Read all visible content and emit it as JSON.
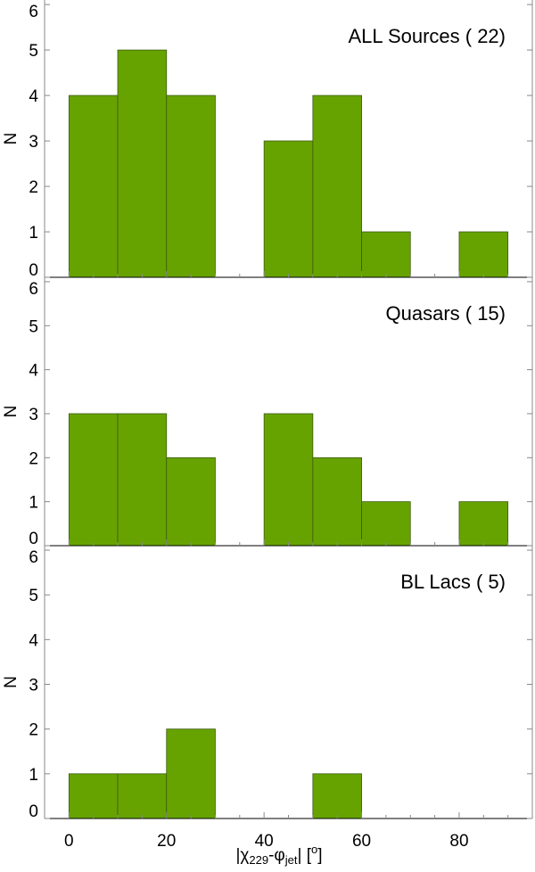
{
  "chart_data": [
    {
      "type": "bar",
      "title": "ALL Sources ( 22)",
      "ylabel": "N",
      "xlabel": "",
      "bin_edges": [
        0,
        10,
        20,
        30,
        40,
        50,
        60,
        70,
        80,
        90
      ],
      "values": [
        4,
        5,
        4,
        0,
        3,
        4,
        1,
        0,
        1
      ],
      "xlim": [
        -5,
        95
      ],
      "ylim": [
        0,
        6.1
      ],
      "yticks": [
        0,
        1,
        2,
        3,
        4,
        5,
        6
      ],
      "xticks": [
        0,
        20,
        40,
        60,
        80
      ],
      "show_xtick_labels": false
    },
    {
      "type": "bar",
      "title": "Quasars ( 15)",
      "ylabel": "N",
      "xlabel": "",
      "bin_edges": [
        0,
        10,
        20,
        30,
        40,
        50,
        60,
        70,
        80,
        90
      ],
      "values": [
        3,
        3,
        2,
        0,
        3,
        2,
        1,
        0,
        1
      ],
      "xlim": [
        -5,
        95
      ],
      "ylim": [
        0,
        6.1
      ],
      "yticks": [
        0,
        1,
        2,
        3,
        4,
        5,
        6
      ],
      "xticks": [
        0,
        20,
        40,
        60,
        80
      ],
      "show_xtick_labels": false
    },
    {
      "type": "bar",
      "title": "BL Lacs ( 5)",
      "ylabel": "N",
      "xlabel_parts": {
        "pre": "|χ",
        "sub1": "229",
        "mid": "-φ",
        "sub2": "jet",
        "post": "| [",
        "sup": "o",
        "end": "]"
      },
      "bin_edges": [
        0,
        10,
        20,
        30,
        40,
        50,
        60,
        70,
        80,
        90
      ],
      "values": [
        1,
        1,
        2,
        0,
        0,
        1,
        0,
        0,
        0
      ],
      "xlim": [
        -5,
        95
      ],
      "ylim": [
        0,
        6.1
      ],
      "yticks": [
        0,
        1,
        2,
        3,
        4,
        5,
        6
      ],
      "xticks": [
        0,
        20,
        40,
        60,
        80
      ],
      "show_xtick_labels": true
    }
  ],
  "colors": {
    "bar_fill": "#66a300",
    "bar_edge": "#3d5a10",
    "axis": "#888888"
  }
}
